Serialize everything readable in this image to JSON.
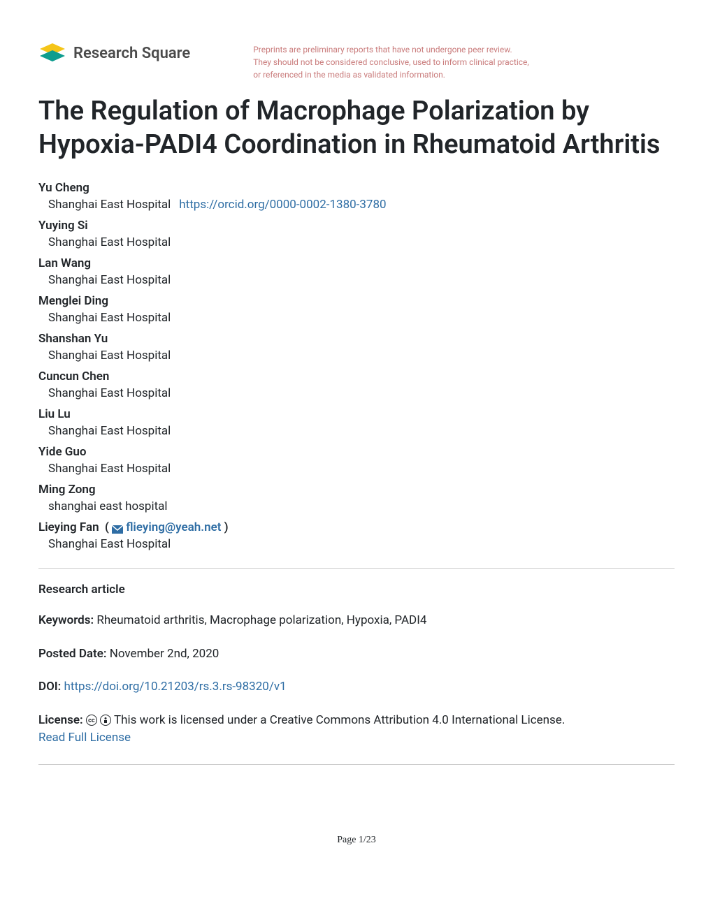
{
  "header": {
    "logo_text": "Research Square",
    "disclaimer_line1": "Preprints are preliminary reports that have not undergone peer review.",
    "disclaimer_line2": "They should not be considered conclusive, used to inform clinical practice,",
    "disclaimer_line3": "or referenced in the media as validated information."
  },
  "title": "The Regulation of Macrophage Polarization by Hypoxia-PADI4 Coordination in Rheumatoid Arthritis",
  "authors": [
    {
      "name": "Yu Cheng",
      "affiliation": "Shanghai East Hospital",
      "orcid": "https://orcid.org/0000-0002-1380-3780",
      "corresponding": false
    },
    {
      "name": "Yuying Si",
      "affiliation": "Shanghai East Hospital",
      "corresponding": false
    },
    {
      "name": "Lan Wang",
      "affiliation": "Shanghai East Hospital",
      "corresponding": false
    },
    {
      "name": "Menglei Ding",
      "affiliation": "Shanghai East Hospital",
      "corresponding": false
    },
    {
      "name": "Shanshan Yu",
      "affiliation": "Shanghai East Hospital",
      "corresponding": false
    },
    {
      "name": "Cuncun Chen",
      "affiliation": "Shanghai East Hospital",
      "corresponding": false
    },
    {
      "name": "Liu Lu",
      "affiliation": "Shanghai East Hospital",
      "corresponding": false
    },
    {
      "name": "Yide Guo",
      "affiliation": "Shanghai East Hospital",
      "corresponding": false
    },
    {
      "name": "Ming Zong",
      "affiliation": "shanghai east hospital",
      "corresponding": false
    },
    {
      "name": "Lieying Fan",
      "affiliation": "Shanghai East Hospital",
      "email": "flieying@yeah.net",
      "corresponding": true
    }
  ],
  "article_type": "Research article",
  "keywords": {
    "label": "Keywords:",
    "value": "Rheumatoid arthritis, Macrophage polarization, Hypoxia, PADI4"
  },
  "posted_date": {
    "label": "Posted Date:",
    "value": "November 2nd, 2020"
  },
  "doi": {
    "label": "DOI:",
    "url": "https://doi.org/10.21203/rs.3.rs-98320/v1"
  },
  "license": {
    "label": "License:",
    "text": "This work is licensed under a Creative Commons Attribution 4.0 International License.",
    "link_text": "Read Full License"
  },
  "page_number": "Page 1/23",
  "colors": {
    "text_primary": "#212529",
    "link_blue": "#2e6da4",
    "disclaimer_red": "#c97b7b",
    "logo_yellow": "#f5c518",
    "logo_teal": "#0f9d8f",
    "divider": "#cccccc"
  }
}
